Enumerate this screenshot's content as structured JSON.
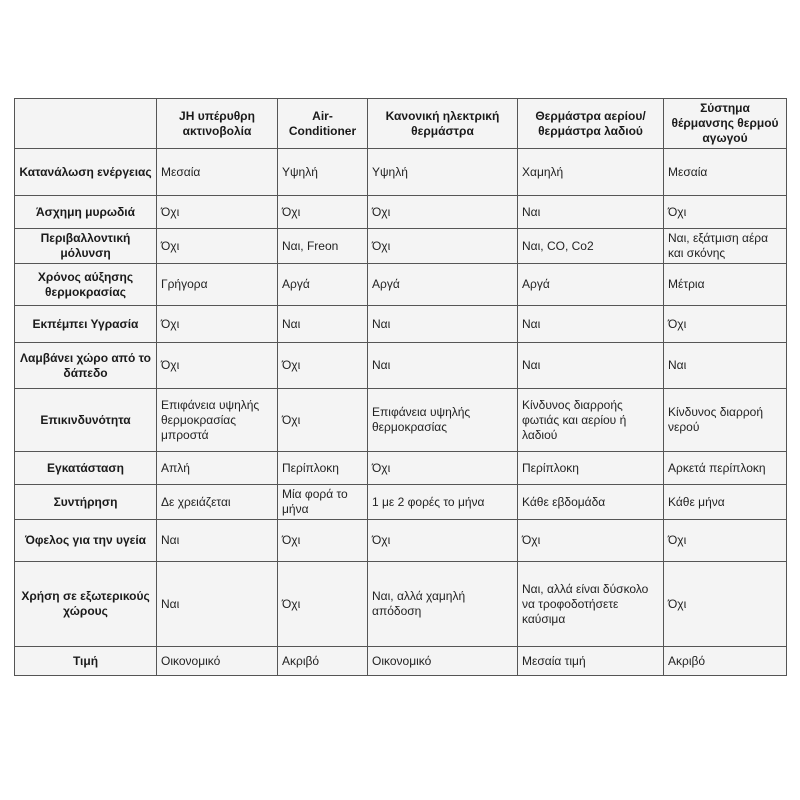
{
  "table": {
    "columns": [
      "",
      "JH υπέρυθρη ακτινοβολία",
      "Air-Conditioner",
      "Κανονική ηλεκτρική θερμάστρα",
      "Θερμάστρα αερίου/ θερμάστρα λαδιού",
      "Σύστημα θέρμανσης θερμού αγωγού"
    ],
    "rows": [
      {
        "label": "Κατανάλωση ενέργειας",
        "cells": [
          "Μεσαία",
          "Υψηλή",
          "Υψηλή",
          "Χαμηλή",
          "Μεσαία"
        ]
      },
      {
        "label": "Άσχημη μυρωδιά",
        "cells": [
          "Όχι",
          "Όχι",
          "Όχι",
          "Ναι",
          "Όχι"
        ]
      },
      {
        "label": "Περιβαλλοντική μόλυνση",
        "cells": [
          "Όχι",
          "Ναι, Freon",
          "Όχι",
          "Ναι, CO, Co2",
          "Ναι, εξάτμιση αέρα και σκόνης"
        ]
      },
      {
        "label": "Χρόνος αύξησης θερμοκρασίας",
        "cells": [
          "Γρήγορα",
          "Αργά",
          "Αργά",
          "Αργά",
          "Μέτρια"
        ]
      },
      {
        "label": "Εκπέμπει Υγρασία",
        "cells": [
          "Όχι",
          "Ναι",
          "Ναι",
          "Ναι",
          "Όχι"
        ]
      },
      {
        "label": "Λαμβάνει χώρο από το δάπεδο",
        "cells": [
          "Όχι",
          "Όχι",
          "Ναι",
          "Ναι",
          "Ναι"
        ]
      },
      {
        "label": "Επικινδυνότητα",
        "cells": [
          "Επιφάνεια υψηλής θερμοκρασίας μπροστά",
          "Όχι",
          "Επιφάνεια υψηλής θερμοκρασίας",
          "Κίνδυνος διαρροής φωτιάς και αερίου ή λαδιού",
          "Κίνδυνος διαρροή νερού"
        ]
      },
      {
        "label": "Εγκατάσταση",
        "cells": [
          "Απλή",
          "Περίπλοκη",
          "Όχι",
          "Περίπλοκη",
          "Αρκετά περίπλοκη"
        ]
      },
      {
        "label": "Συντήρηση",
        "cells": [
          "Δε χρειάζεται",
          "Μία φορά το μήνα",
          "1 με 2 φορές το μήνα",
          "Κάθε εβδομάδα",
          "Κάθε μήνα"
        ]
      },
      {
        "label": "Όφελος για την υγεία",
        "cells": [
          "Ναι",
          "Όχι",
          "Όχι",
          "Όχι",
          "Όχι"
        ]
      },
      {
        "label": "Χρήση σε εξωτερικούς χώρους",
        "cells": [
          "Ναι",
          "Όχι",
          "Ναι, αλλά χαμηλή απόδοση",
          "Ναι, αλλά είναι δύσκολο να τροφοδοτήσετε καύσιμα",
          "Όχι"
        ]
      },
      {
        "label": "Τιμή",
        "cells": [
          "Οικονομικό",
          "Ακριβό",
          "Οικονομικό",
          "Μεσαία τιμή",
          "Ακριβό"
        ]
      }
    ]
  }
}
